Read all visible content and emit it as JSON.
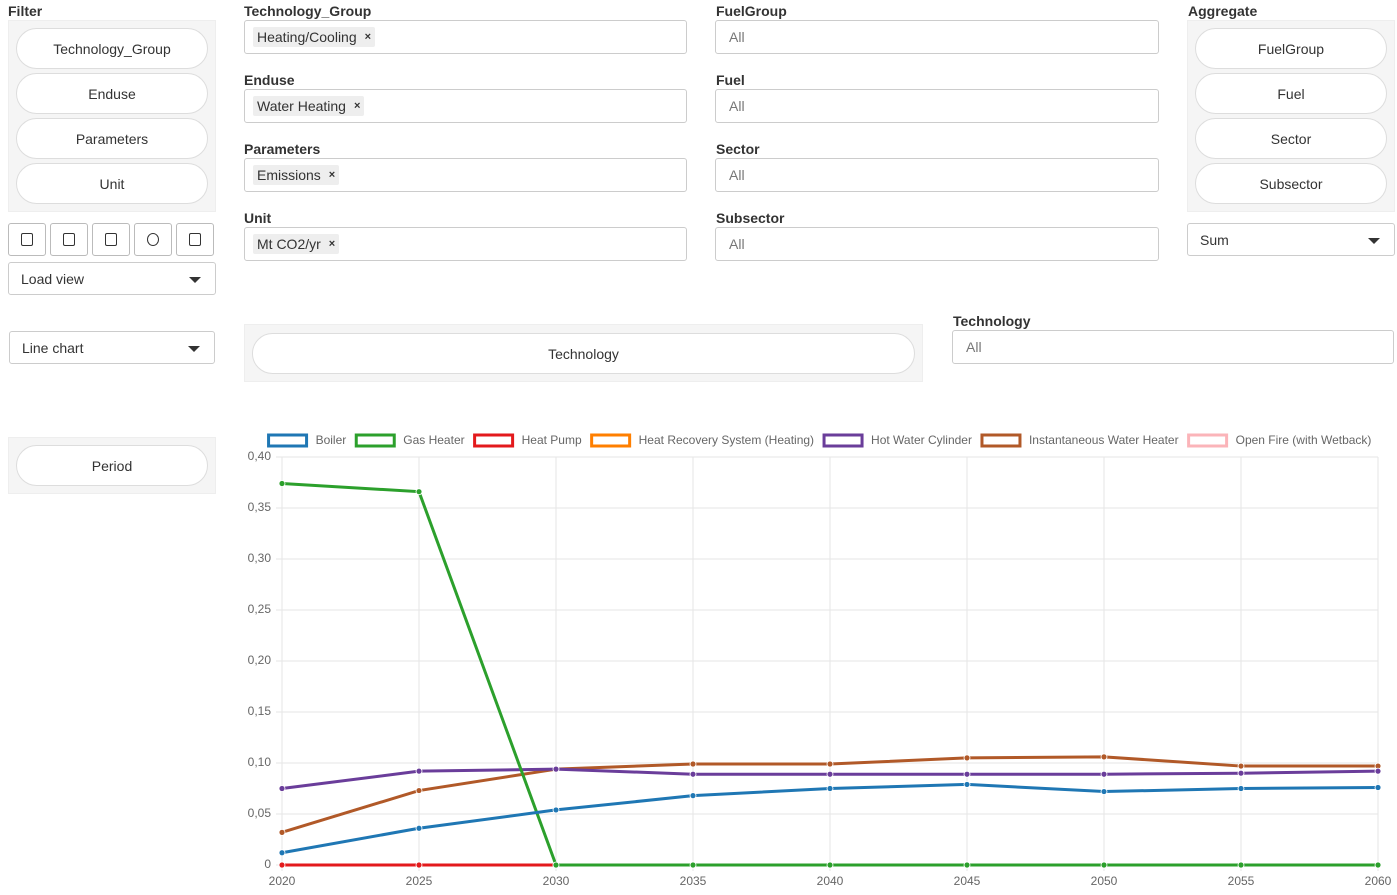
{
  "filter": {
    "title": "Filter",
    "buttons": [
      "Technology_Group",
      "Enduse",
      "Parameters",
      "Unit"
    ]
  },
  "load_view": "Load view",
  "chart_type": "Line chart",
  "period": "Period",
  "remove_symbol": "×",
  "left_fields": [
    {
      "label": "Technology_Group",
      "tag": "Heating/Cooling"
    },
    {
      "label": "Enduse",
      "tag": "Water Heating"
    },
    {
      "label": "Parameters",
      "tag": "Emissions"
    },
    {
      "label": "Unit",
      "tag": "Mt CO2/yr"
    }
  ],
  "right_fields": [
    {
      "label": "FuelGroup",
      "placeholder": "All"
    },
    {
      "label": "Fuel",
      "placeholder": "All"
    },
    {
      "label": "Sector",
      "placeholder": "All"
    },
    {
      "label": "Subsector",
      "placeholder": "All"
    }
  ],
  "aggregate": {
    "title": "Aggregate",
    "buttons": [
      "FuelGroup",
      "Fuel",
      "Sector",
      "Subsector"
    ],
    "method": "Sum"
  },
  "group_button": "Technology",
  "technology_field": {
    "label": "Technology",
    "placeholder": "All"
  },
  "chart_data": {
    "type": "line",
    "x": [
      2020,
      2025,
      2030,
      2035,
      2040,
      2045,
      2050,
      2055,
      2060
    ],
    "xlim": [
      2020,
      2060
    ],
    "xticks": [
      2020,
      2025,
      2030,
      2035,
      2040,
      2045,
      2050,
      2055,
      2060
    ],
    "ylim": [
      0,
      0.4
    ],
    "yticks": [
      0,
      {
        "value": 0.05,
        "label": "0,05"
      },
      {
        "value": 0.1,
        "label": "0,10"
      },
      {
        "value": 0.15,
        "label": "0,15"
      },
      {
        "value": 0.2,
        "label": "0,20"
      },
      {
        "value": 0.25,
        "label": "0,25"
      },
      {
        "value": 0.3,
        "label": "0,30"
      },
      {
        "value": 0.35,
        "label": "0,35"
      },
      {
        "value": 0.4,
        "label": "0,40"
      }
    ],
    "grid": true,
    "legend": "top",
    "series": [
      {
        "name": "Boiler",
        "color": "#1f77b4",
        "values": [
          0.012,
          0.036,
          0.054,
          0.068,
          0.075,
          0.079,
          0.072,
          0.075,
          0.076
        ]
      },
      {
        "name": "Gas Heater",
        "color": "#2ca02c",
        "values": [
          0.374,
          0.366,
          0,
          0,
          0,
          0,
          0,
          0,
          0
        ]
      },
      {
        "name": "Heat Pump",
        "color": "#e31a1c",
        "values": [
          0,
          0,
          0,
          0,
          0,
          0,
          0,
          0,
          0
        ]
      },
      {
        "name": "Heat Recovery System (Heating)",
        "color": "#ff7f00",
        "values": [
          0,
          0,
          0,
          0,
          0,
          0,
          0,
          0,
          0
        ]
      },
      {
        "name": "Hot Water Cylinder",
        "color": "#6a3d9a",
        "values": [
          0.075,
          0.092,
          0.094,
          0.089,
          0.089,
          0.089,
          0.089,
          0.09,
          0.092
        ]
      },
      {
        "name": "Instantaneous Water Heater",
        "color": "#b15928",
        "values": [
          0.032,
          0.073,
          0.094,
          0.099,
          0.099,
          0.105,
          0.106,
          0.097,
          0.097
        ]
      },
      {
        "name": "Open Fire (with Wetback)",
        "color": "#fbb4b9",
        "values": [
          0,
          0,
          0,
          0,
          0,
          0,
          0,
          0,
          0
        ]
      }
    ]
  }
}
